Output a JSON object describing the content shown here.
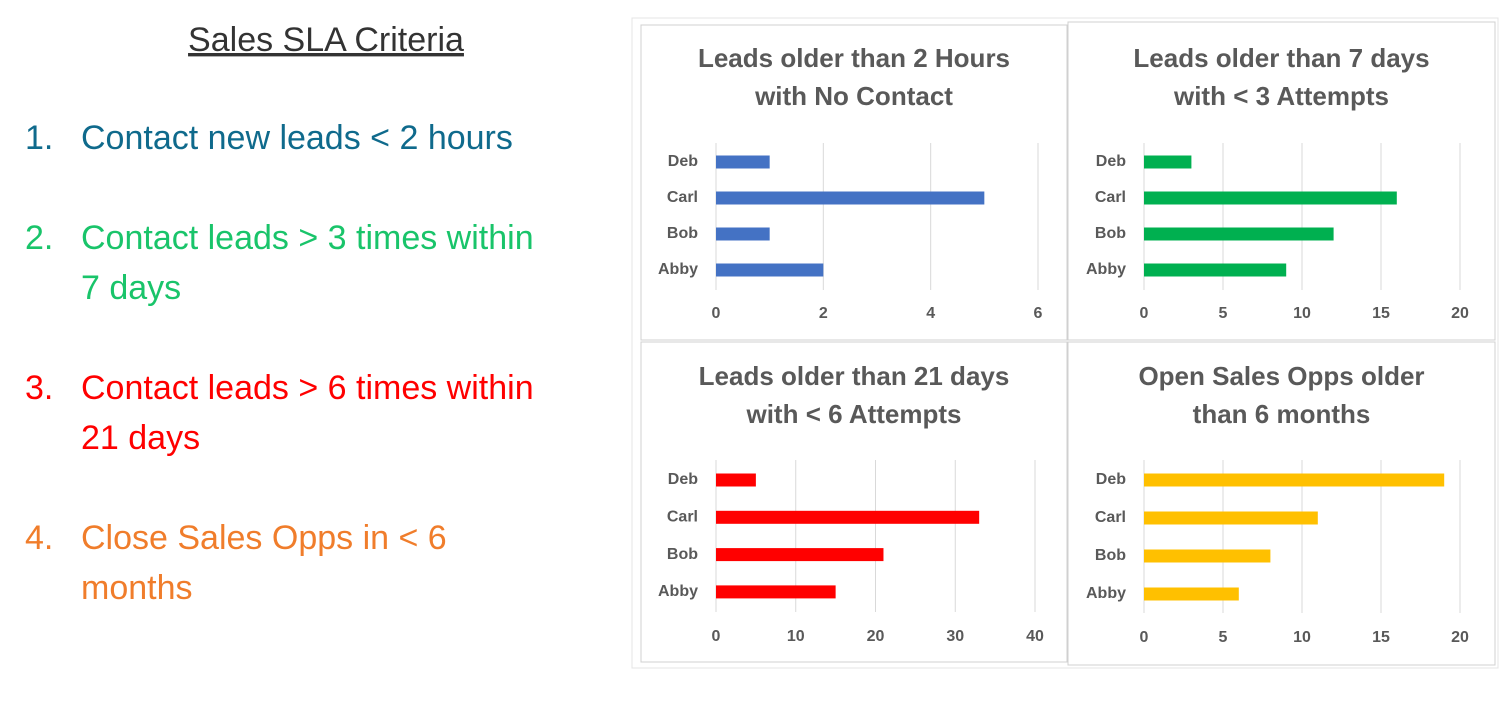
{
  "criteria": {
    "title": "Sales SLA Criteria",
    "items": [
      {
        "number": "1.",
        "lines": [
          "Contact new leads < 2 hours"
        ],
        "color": "#0f6a8c"
      },
      {
        "number": "2.",
        "lines": [
          "Contact leads > 3 times within",
          "7 days"
        ],
        "color": "#19c46a"
      },
      {
        "number": "3.",
        "lines": [
          "Contact leads > 6 times within",
          "21 days"
        ],
        "color": "#ff0000"
      },
      {
        "number": "4.",
        "lines": [
          "Close Sales Opps in < 6",
          "months"
        ],
        "color": "#f07d2b"
      }
    ]
  },
  "chart_data": [
    {
      "type": "bar",
      "orientation": "horizontal",
      "title_lines": [
        "Leads older than 2 Hours",
        "with No Contact"
      ],
      "categories": [
        "Deb",
        "Carl",
        "Bob",
        "Abby"
      ],
      "values": [
        1,
        5,
        1,
        2
      ],
      "color": "#4472c4",
      "xlim": [
        0,
        6
      ],
      "xticks": [
        0,
        2,
        4,
        6
      ],
      "grid": true
    },
    {
      "type": "bar",
      "orientation": "horizontal",
      "title_lines": [
        "Leads older than 7 days",
        "with < 3 Attempts"
      ],
      "categories": [
        "Deb",
        "Carl",
        "Bob",
        "Abby"
      ],
      "values": [
        3,
        16,
        12,
        9
      ],
      "color": "#00b050",
      "xlim": [
        0,
        20
      ],
      "xticks": [
        0,
        5,
        10,
        15,
        20
      ],
      "grid": true
    },
    {
      "type": "bar",
      "orientation": "horizontal",
      "title_lines": [
        "Leads older than 21 days",
        "with < 6 Attempts"
      ],
      "categories": [
        "Deb",
        "Carl",
        "Bob",
        "Abby"
      ],
      "values": [
        5,
        33,
        21,
        15
      ],
      "color": "#ff0000",
      "xlim": [
        0,
        40
      ],
      "xticks": [
        0,
        10,
        20,
        30,
        40
      ],
      "grid": true
    },
    {
      "type": "bar",
      "orientation": "horizontal",
      "title_lines": [
        "Open Sales Opps older",
        "than 6 months"
      ],
      "categories": [
        "Deb",
        "Carl",
        "Bob",
        "Abby"
      ],
      "values": [
        19,
        11,
        8,
        6
      ],
      "color": "#ffc000",
      "xlim": [
        0,
        20
      ],
      "xticks": [
        0,
        5,
        10,
        15,
        20
      ],
      "grid": true
    }
  ]
}
